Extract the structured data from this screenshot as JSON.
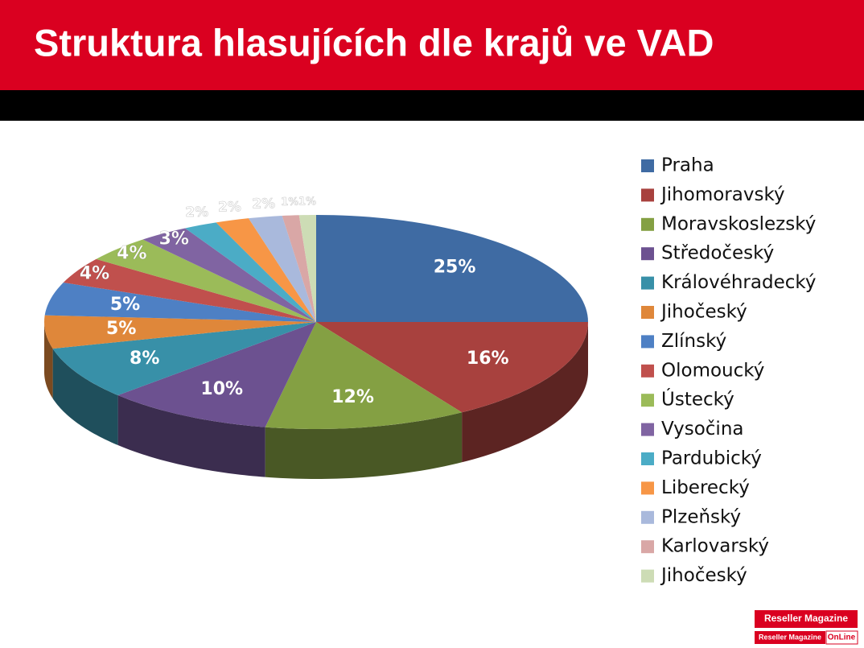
{
  "chart_data": {
    "type": "pie3d",
    "title": "Struktura hlasujících dle krajů ve VAD",
    "categories": [
      "Praha",
      "Jihomoravský",
      "Moravskoslezský",
      "Středočeský",
      "Královéhradecký",
      "Jihočeský",
      "Zlínský",
      "Olomoucký",
      "Ústecký",
      "Vysočina",
      "Pardubický",
      "Liberecký",
      "Plzeňský",
      "Karlovarský",
      "Jihočeský"
    ],
    "values": [
      25,
      16,
      12,
      10,
      8,
      5,
      5,
      4,
      4,
      3,
      2,
      2,
      2,
      1,
      1
    ],
    "value_labels": [
      "25%",
      "16%",
      "12%",
      "10%",
      "8%",
      "5%",
      "5%",
      "4%",
      "4%",
      "3%",
      "2%",
      "2%",
      "2%",
      "1%",
      "1%"
    ],
    "colors": [
      "#3f6ba3",
      "#a8413e",
      "#84a043",
      "#6c5190",
      "#3890a8",
      "#df873a",
      "#4e80c4",
      "#c0504d",
      "#9bbb59",
      "#8064a2",
      "#4bacc6",
      "#f79646",
      "#a9b9dc",
      "#d9a7a6",
      "#cddcb5"
    ],
    "legend": "right"
  },
  "logo": {
    "top": "Reseller Magazine",
    "bottom": "Reseller Magazine",
    "badge": "OnLine"
  }
}
